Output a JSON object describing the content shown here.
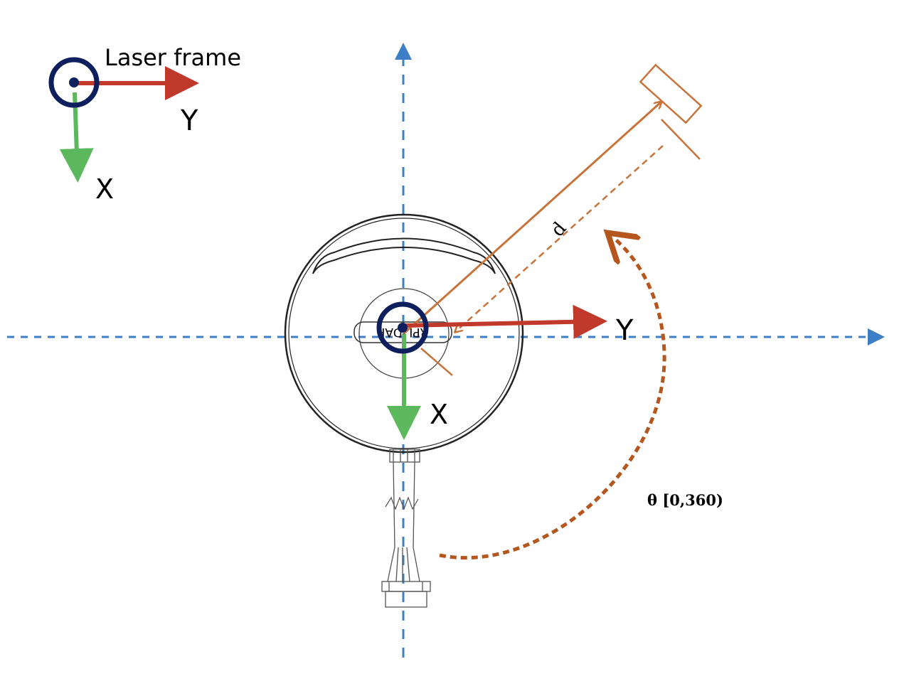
{
  "legend": {
    "title": "Laser frame",
    "y_axis_label": "Y",
    "x_axis_label": "X"
  },
  "main_frame": {
    "y_axis_label": "Y",
    "x_axis_label": "X"
  },
  "device": {
    "housing_text": "RPLIDAR"
  },
  "measurement": {
    "distance_label": "d",
    "angle_label": "θ [0,360)"
  },
  "colors": {
    "y_axis": "#c0392b",
    "x_axis": "#5cb85c",
    "origin_ring": "#0d1f5c",
    "reference_axes": "#3d7fc6",
    "measurement": "#c8733a",
    "angle_arc": "#b5561e"
  }
}
